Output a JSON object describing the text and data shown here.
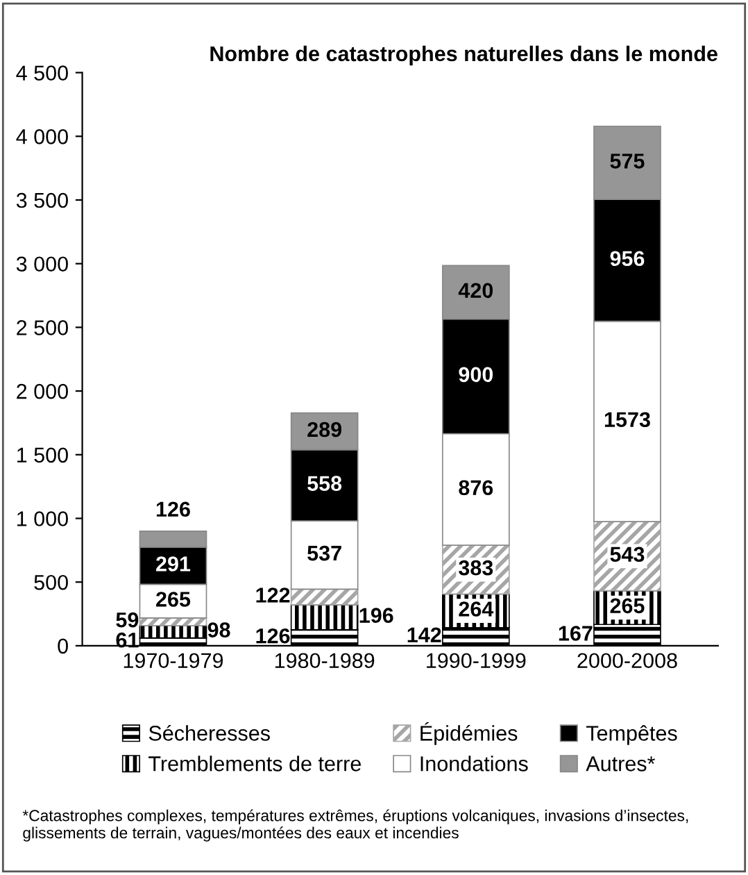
{
  "chart_data": {
    "type": "bar",
    "stacked": true,
    "title": "Nombre de catastrophes naturelles dans le monde",
    "categories": [
      "1970-1979",
      "1980-1989",
      "1990-1999",
      "2000-2008"
    ],
    "series": [
      {
        "name": "Sécheresses",
        "color": "#000000",
        "values": [
          61,
          126,
          142,
          167
        ]
      },
      {
        "name": "Tremblements de terre",
        "color": "#000000",
        "values": [
          98,
          196,
          264,
          265
        ]
      },
      {
        "name": "Épidémies",
        "color": "#a6a6a6",
        "values": [
          59,
          122,
          383,
          543
        ]
      },
      {
        "name": "Inondations",
        "color": "#ffffff",
        "values": [
          265,
          537,
          876,
          1573
        ]
      },
      {
        "name": "Tempêtes",
        "color": "#000000",
        "values": [
          291,
          558,
          900,
          956
        ]
      },
      {
        "name": "Autres*",
        "color": "#969696",
        "values": [
          126,
          289,
          420,
          575
        ]
      }
    ],
    "ylim": [
      0,
      4500
    ],
    "yticks": [
      0,
      500,
      {
        "value": 1000,
        "label": "1 000"
      },
      {
        "value": 1500,
        "label": "1 500"
      },
      {
        "value": 2000,
        "label": "2 000"
      },
      {
        "value": 2500,
        "label": "2 500"
      },
      {
        "value": 3000,
        "label": "3 000"
      },
      {
        "value": 3500,
        "label": "3 500"
      },
      {
        "value": 4000,
        "label": "4 000"
      },
      {
        "value": 4500,
        "label": "4 500"
      }
    ],
    "grid": false,
    "legend": "bottom",
    "data_labels": true,
    "annotations": [
      "*Catastrophes complexes, températures extrêmes, éruptions volcaniques, invasions d’insectes, glissements de terrain, vagues/montées des eaux et incendies"
    ]
  }
}
